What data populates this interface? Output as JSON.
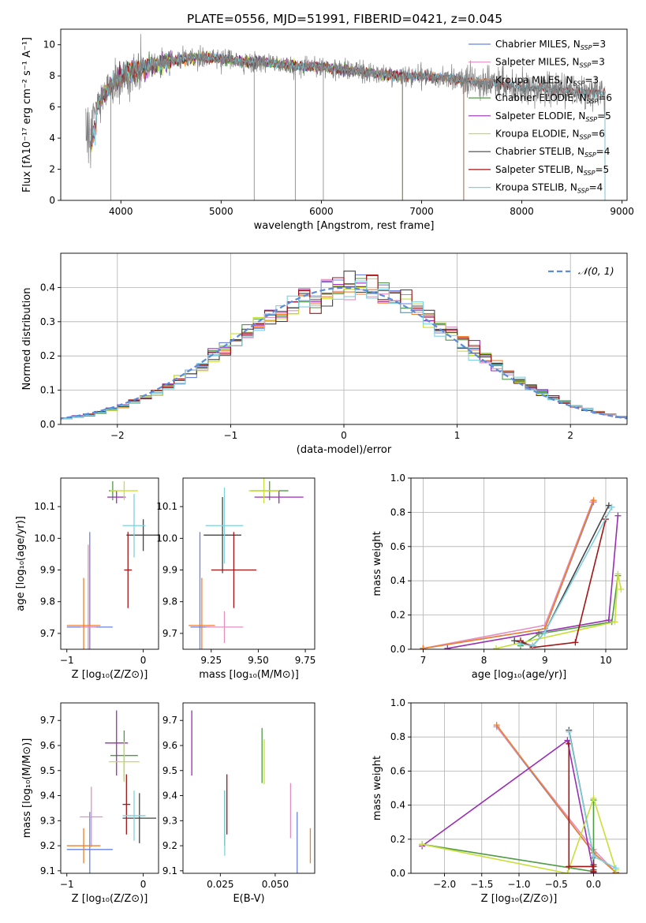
{
  "figure_title": "PLATE=0556, MJD=51991, FIBERID=0421, z=0.045",
  "colors": {
    "Chabrier MILES": "#6c82e0",
    "Salpeter MILES": "#e48fc1",
    "Kroupa MILES": "#f07f2a",
    "Chabrier ELODIE": "#4f9a45",
    "Salpeter ELODIE": "#9a2db5",
    "Kroupa ELODIE": "#c9df39",
    "Chabrier STELIB": "#444444",
    "Salpeter STELIB": "#a31414",
    "Kroupa STELIB": "#7fd1df",
    "data": "#808080",
    "normal": "#5b8bdc"
  },
  "chart_data": [
    {
      "id": "spectrum",
      "type": "line",
      "title": "PLATE=0556, MJD=51991, FIBERID=0421, z=0.045",
      "xlabel": "wavelength [Angstrom, rest frame]",
      "ylabel": "Flux [fλ10⁻¹⁷ erg cm⁻² s⁻¹ A⁻¹]",
      "xlim": [
        3400,
        9050
      ],
      "ylim": [
        0,
        11
      ],
      "xticks": [
        4000,
        5000,
        6000,
        7000,
        8000,
        9000
      ],
      "yticks": [
        0,
        2,
        4,
        6,
        8,
        10
      ],
      "grid": false,
      "legend_position": "top-right",
      "legend": [
        {
          "model": "Chabrier MILES",
          "n": "3"
        },
        {
          "model": "Salpeter MILES",
          "n": "3"
        },
        {
          "model": "Kroupa MILES",
          "n": "3"
        },
        {
          "model": "Chabrier ELODIE",
          "n": "6"
        },
        {
          "model": "Salpeter ELODIE",
          "n": "5"
        },
        {
          "model": "Kroupa ELODIE",
          "n": "6"
        },
        {
          "model": "Chabrier STELIB",
          "n": "4"
        },
        {
          "model": "Salpeter STELIB",
          "n": "5"
        },
        {
          "model": "Kroupa STELIB",
          "n": "4"
        }
      ],
      "continuum": [
        [
          3690,
          5.2
        ],
        [
          3750,
          6.0
        ],
        [
          3850,
          7.0
        ],
        [
          3950,
          7.6
        ],
        [
          4050,
          8.2
        ],
        [
          4200,
          8.5
        ],
        [
          4400,
          8.8
        ],
        [
          4600,
          9.1
        ],
        [
          4800,
          9.2
        ],
        [
          5000,
          9.1
        ],
        [
          5200,
          8.9
        ],
        [
          5400,
          8.9
        ],
        [
          5600,
          8.7
        ],
        [
          5800,
          8.6
        ],
        [
          6000,
          8.6
        ],
        [
          6200,
          8.4
        ],
        [
          6400,
          8.3
        ],
        [
          6600,
          8.1
        ],
        [
          6800,
          8.0
        ],
        [
          7000,
          8.0
        ],
        [
          7200,
          7.9
        ],
        [
          7400,
          7.7
        ],
        [
          7600,
          7.6
        ],
        [
          7800,
          7.5
        ],
        [
          8000,
          7.3
        ],
        [
          8200,
          7.2
        ],
        [
          8400,
          7.1
        ],
        [
          8600,
          7.0
        ],
        [
          8800,
          6.9
        ]
      ],
      "model_range": {
        "MILES": [
          3700,
          7420
        ],
        "ELODIE": [
          3700,
          6810
        ],
        "STELIB": [
          3700,
          8830
        ]
      },
      "data_range": [
        3650,
        8830
      ],
      "dropouts": [
        {
          "x": 3900,
          "to": 0
        },
        {
          "x": 5330,
          "to": 0
        },
        {
          "x": 5740,
          "to": 0
        },
        {
          "x": 6020,
          "to": 0
        },
        {
          "x": 6810,
          "to": 0
        },
        {
          "x": 7420,
          "to": 0
        }
      ]
    },
    {
      "id": "residuals",
      "type": "histogram",
      "xlabel": "(data-model)/error",
      "ylabel": "Normed distribution",
      "xlim": [
        -2.5,
        2.5
      ],
      "ylim": [
        0,
        0.5
      ],
      "xticks": [
        -2,
        -1,
        0,
        1,
        2
      ],
      "yticks": [
        0.0,
        0.1,
        0.2,
        0.3,
        0.4
      ],
      "grid": true,
      "legend_position": "top-right",
      "legend": [
        "𝒩(0, 1)"
      ],
      "bin_width": 0.1
    },
    {
      "id": "age-vs-Z",
      "type": "errorbar",
      "xlabel": "Z [log₁₀(Z/Z⊙)]",
      "ylabel": "age  [log₁₀(age/yr)]",
      "xlim": [
        -1.08,
        0.2
      ],
      "ylim": [
        9.65,
        10.19
      ],
      "xticks": [
        -1,
        0
      ],
      "yticks": [
        9.7,
        9.8,
        9.9,
        10.0,
        10.1
      ],
      "points": [
        {
          "model": "Chabrier MILES",
          "x": -0.7,
          "y": 9.72,
          "xerr": 0.3,
          "yerr": 0.3
        },
        {
          "model": "Salpeter MILES",
          "x": -0.72,
          "y": 9.72,
          "xerr": 0.1,
          "yerr": 0.26
        },
        {
          "model": "Kroupa MILES",
          "x": -0.78,
          "y": 9.725,
          "xerr": 0.22,
          "yerr": 0.15
        },
        {
          "model": "Chabrier ELODIE",
          "x": -0.4,
          "y": 10.15,
          "xerr": 0.05,
          "yerr": 0.03
        },
        {
          "model": "Salpeter ELODIE",
          "x": -0.35,
          "y": 10.13,
          "xerr": 0.12,
          "yerr": 0.02
        },
        {
          "model": "Kroupa ELODIE",
          "x": -0.25,
          "y": 10.15,
          "xerr": 0.18,
          "yerr": 0.03
        },
        {
          "model": "Chabrier STELIB",
          "x": 0.0,
          "y": 10.01,
          "xerr": 0.22,
          "yerr": 0.05
        },
        {
          "model": "Salpeter STELIB",
          "x": -0.2,
          "y": 9.9,
          "xerr": 0.05,
          "yerr": 0.12
        },
        {
          "model": "Kroupa STELIB",
          "x": -0.12,
          "y": 10.04,
          "xerr": 0.15,
          "yerr": 0.1
        }
      ]
    },
    {
      "id": "age-vs-mass",
      "type": "errorbar",
      "xlabel": "mass [log₁₀(M/M⊙)]",
      "ylabel": "",
      "xlim": [
        9.1,
        9.8
      ],
      "ylim": [
        9.65,
        10.19
      ],
      "xticks": [
        9.25,
        9.5,
        9.75
      ],
      "yticks": [
        9.7,
        9.8,
        9.9,
        10.0,
        10.1
      ],
      "points": [
        {
          "model": "Chabrier MILES",
          "x": 9.19,
          "y": 9.72,
          "xerr": 0.05,
          "yerr": 0.3
        },
        {
          "model": "Salpeter MILES",
          "x": 9.32,
          "y": 9.72,
          "xerr": 0.1,
          "yerr": 0.05
        },
        {
          "model": "Kroupa MILES",
          "x": 9.2,
          "y": 9.725,
          "xerr": 0.07,
          "yerr": 0.15
        },
        {
          "model": "Chabrier ELODIE",
          "x": 9.56,
          "y": 10.15,
          "xerr": 0.1,
          "yerr": 0.03
        },
        {
          "model": "Salpeter ELODIE",
          "x": 9.61,
          "y": 10.13,
          "xerr": 0.13,
          "yerr": 0.02
        },
        {
          "model": "Kroupa ELODIE",
          "x": 9.53,
          "y": 10.15,
          "xerr": 0.08,
          "yerr": 0.04
        },
        {
          "model": "Chabrier STELIB",
          "x": 9.31,
          "y": 10.01,
          "xerr": 0.1,
          "yerr": 0.12
        },
        {
          "model": "Salpeter STELIB",
          "x": 9.37,
          "y": 9.9,
          "xerr": 0.12,
          "yerr": 0.12
        },
        {
          "model": "Kroupa STELIB",
          "x": 9.32,
          "y": 10.04,
          "xerr": 0.1,
          "yerr": 0.12
        }
      ]
    },
    {
      "id": "weight-vs-age",
      "type": "line",
      "xlabel": "age  [log₁₀(age/yr)]",
      "ylabel": "mass weight",
      "xlim": [
        6.8,
        10.35
      ],
      "ylim": [
        0,
        1
      ],
      "xticks": [
        7,
        8,
        9,
        10
      ],
      "yticks": [
        0.0,
        0.2,
        0.4,
        0.6,
        0.8,
        1.0
      ],
      "grid": true,
      "series": [
        {
          "model": "Chabrier MILES",
          "x": [
            7.0,
            9.0,
            9.8
          ],
          "y": [
            0.005,
            0.12,
            0.86
          ]
        },
        {
          "model": "Salpeter MILES",
          "x": [
            7.0,
            9.0,
            9.78
          ],
          "y": [
            0.005,
            0.14,
            0.86
          ]
        },
        {
          "model": "Kroupa MILES",
          "x": [
            7.0,
            9.0,
            9.8
          ],
          "y": [
            0.005,
            0.12,
            0.87
          ]
        },
        {
          "model": "Chabrier ELODIE",
          "x": [
            8.6,
            8.9,
            10.1,
            10.2
          ],
          "y": [
            0.02,
            0.09,
            0.16,
            0.43
          ]
        },
        {
          "model": "Salpeter ELODIE",
          "x": [
            7.4,
            10.05,
            10.2
          ],
          "y": [
            0.005,
            0.17,
            0.78
          ]
        },
        {
          "model": "Kroupa ELODIE",
          "x": [
            8.2,
            10.15,
            10.2,
            10.25
          ],
          "y": [
            0.005,
            0.16,
            0.44,
            0.35
          ]
        },
        {
          "model": "Chabrier STELIB",
          "x": [
            8.5,
            8.8,
            9.0,
            10.05
          ],
          "y": [
            0.05,
            0.02,
            0.1,
            0.84
          ]
        },
        {
          "model": "Salpeter STELIB",
          "x": [
            8.6,
            8.8,
            9.5,
            10.0
          ],
          "y": [
            0.05,
            0.01,
            0.04,
            0.76
          ]
        },
        {
          "model": "Kroupa STELIB",
          "x": [
            8.6,
            8.8,
            9.0,
            10.1
          ],
          "y": [
            0.03,
            0.02,
            0.1,
            0.83
          ]
        }
      ]
    },
    {
      "id": "mass-vs-Z",
      "type": "errorbar",
      "xlabel": "Z [log₁₀(Z/Z⊙)]",
      "ylabel": "mass [log₁₀(M/M⊙)]",
      "xlim": [
        -1.08,
        0.2
      ],
      "ylim": [
        9.09,
        9.77
      ],
      "xticks": [
        -1,
        0
      ],
      "yticks": [
        9.1,
        9.2,
        9.3,
        9.4,
        9.5,
        9.6,
        9.7
      ],
      "points": [
        {
          "model": "Chabrier MILES",
          "x": -0.7,
          "y": 9.185,
          "xerr": 0.3,
          "yerr": 0.15
        },
        {
          "model": "Salpeter MILES",
          "x": -0.68,
          "y": 9.315,
          "xerr": 0.15,
          "yerr": 0.12
        },
        {
          "model": "Kroupa MILES",
          "x": -0.78,
          "y": 9.2,
          "xerr": 0.22,
          "yerr": 0.07
        },
        {
          "model": "Chabrier ELODIE",
          "x": -0.25,
          "y": 9.56,
          "xerr": 0.18,
          "yerr": 0.1
        },
        {
          "model": "Salpeter ELODIE",
          "x": -0.35,
          "y": 9.61,
          "xerr": 0.15,
          "yerr": 0.13
        },
        {
          "model": "Kroupa ELODIE",
          "x": -0.25,
          "y": 9.535,
          "xerr": 0.2,
          "yerr": 0.08
        },
        {
          "model": "Chabrier STELIB",
          "x": -0.05,
          "y": 9.31,
          "xerr": 0.22,
          "yerr": 0.1
        },
        {
          "model": "Salpeter STELIB",
          "x": -0.22,
          "y": 9.365,
          "xerr": 0.05,
          "yerr": 0.12
        },
        {
          "model": "Kroupa STELIB",
          "x": -0.12,
          "y": 9.32,
          "xerr": 0.15,
          "yerr": 0.1
        }
      ]
    },
    {
      "id": "mass-vs-EBV",
      "type": "errorbar",
      "xlabel": "E(B-V)",
      "ylabel": "",
      "xlim": [
        0.008,
        0.068
      ],
      "ylim": [
        9.09,
        9.77
      ],
      "xticks": [
        0.025,
        0.05
      ],
      "yticks": [
        9.1,
        9.2,
        9.3,
        9.4,
        9.5,
        9.6,
        9.7
      ],
      "points": [
        {
          "model": "Chabrier MILES",
          "x": 0.06,
          "y": 9.185,
          "xerr": 0.0,
          "yerr": 0.15
        },
        {
          "model": "Salpeter MILES",
          "x": 0.057,
          "y": 9.34,
          "xerr": 0.0,
          "yerr": 0.11
        },
        {
          "model": "Kroupa MILES",
          "x": 0.066,
          "y": 9.2,
          "xerr": 0.0,
          "yerr": 0.07
        },
        {
          "model": "Chabrier ELODIE",
          "x": 0.044,
          "y": 9.56,
          "xerr": 0.0,
          "yerr": 0.11
        },
        {
          "model": "Salpeter ELODIE",
          "x": 0.012,
          "y": 9.61,
          "xerr": 0.0,
          "yerr": 0.13
        },
        {
          "model": "Kroupa ELODIE",
          "x": 0.045,
          "y": 9.535,
          "xerr": 0.0,
          "yerr": 0.09
        },
        {
          "model": "Chabrier STELIB",
          "x": 0.027,
          "y": 9.31,
          "xerr": 0.0,
          "yerr": 0.11
        },
        {
          "model": "Salpeter STELIB",
          "x": 0.028,
          "y": 9.365,
          "xerr": 0.0,
          "yerr": 0.12
        },
        {
          "model": "Kroupa STELIB",
          "x": 0.027,
          "y": 9.29,
          "xerr": 0.0,
          "yerr": 0.13
        }
      ]
    },
    {
      "id": "weight-vs-Z",
      "type": "line",
      "xlabel": "Z [log₁₀(Z/Z⊙)]",
      "ylabel": "mass weight",
      "xlim": [
        -2.45,
        0.45
      ],
      "ylim": [
        0,
        1
      ],
      "xticks": [
        -2.0,
        -1.5,
        -1.0,
        -0.5,
        0.0
      ],
      "yticks": [
        0.0,
        0.2,
        0.4,
        0.6,
        0.8,
        1.0
      ],
      "grid": true,
      "series": [
        {
          "model": "Chabrier MILES",
          "x": [
            -1.3,
            0.0,
            0.3
          ],
          "y": [
            0.86,
            0.12,
            0.005
          ]
        },
        {
          "model": "Salpeter MILES",
          "x": [
            -1.3,
            0.0,
            0.3
          ],
          "y": [
            0.86,
            0.14,
            0.005
          ]
        },
        {
          "model": "Kroupa MILES",
          "x": [
            -1.3,
            0.0,
            0.3
          ],
          "y": [
            0.87,
            0.12,
            0.005
          ]
        },
        {
          "model": "Chabrier ELODIE",
          "x": [
            -2.3,
            0.0,
            0.0,
            0.0
          ],
          "y": [
            0.17,
            0.01,
            0.09,
            0.43
          ]
        },
        {
          "model": "Salpeter ELODIE",
          "x": [
            -2.3,
            -0.35,
            0.0
          ],
          "y": [
            0.16,
            0.78,
            0.005
          ]
        },
        {
          "model": "Kroupa ELODIE",
          "x": [
            -2.3,
            -0.35,
            0.0,
            0.3
          ],
          "y": [
            0.17,
            0.0,
            0.44,
            0.02
          ]
        },
        {
          "model": "Chabrier STELIB",
          "x": [
            -0.33,
            0.0,
            0.0,
            0.0
          ],
          "y": [
            0.84,
            0.1,
            0.05,
            0.02
          ]
        },
        {
          "model": "Salpeter STELIB",
          "x": [
            -0.33,
            -0.33,
            0.0,
            0.0
          ],
          "y": [
            0.76,
            0.04,
            0.04,
            0.01
          ]
        },
        {
          "model": "Kroupa STELIB",
          "x": [
            -0.33,
            0.0,
            0.3
          ],
          "y": [
            0.83,
            0.1,
            0.03
          ]
        }
      ]
    }
  ]
}
